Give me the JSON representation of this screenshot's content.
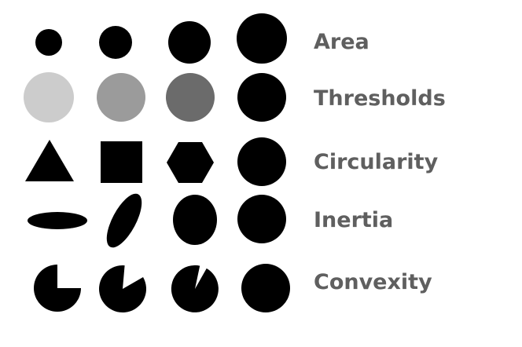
{
  "background_color": "#ffffff",
  "shape_color": "#000000",
  "label_color": "#5f5f5f",
  "rows": [
    {
      "label": "Area",
      "shapes": [
        {
          "kind": "circle",
          "icon": "small-circle-icon",
          "fill": "#000000"
        },
        {
          "kind": "circle",
          "icon": "medium-circle-icon",
          "fill": "#000000"
        },
        {
          "kind": "circle",
          "icon": "large-circle-icon",
          "fill": "#000000"
        },
        {
          "kind": "circle",
          "icon": "largest-circle-icon",
          "fill": "#000000"
        }
      ]
    },
    {
      "label": "Thresholds",
      "shapes": [
        {
          "kind": "circle",
          "icon": "light-gray-circle-icon",
          "fill": "#cccccc"
        },
        {
          "kind": "circle",
          "icon": "gray-circle-icon",
          "fill": "#9b9b9b"
        },
        {
          "kind": "circle",
          "icon": "dark-gray-circle-icon",
          "fill": "#6b6b6b"
        },
        {
          "kind": "circle",
          "icon": "black-circle-icon",
          "fill": "#000000"
        }
      ]
    },
    {
      "label": "Circularity",
      "shapes": [
        {
          "kind": "triangle",
          "icon": "triangle-icon",
          "fill": "#000000"
        },
        {
          "kind": "square",
          "icon": "square-icon",
          "fill": "#000000"
        },
        {
          "kind": "hexagon",
          "icon": "hexagon-icon",
          "fill": "#000000"
        },
        {
          "kind": "circle",
          "icon": "circle-icon",
          "fill": "#000000"
        }
      ]
    },
    {
      "label": "Inertia",
      "shapes": [
        {
          "kind": "ellipse",
          "icon": "flat-ellipse-icon",
          "fill": "#000000"
        },
        {
          "kind": "ellipse",
          "icon": "tilted-ellipse-icon",
          "fill": "#000000"
        },
        {
          "kind": "ellipse",
          "icon": "near-round-ellipse-icon",
          "fill": "#000000"
        },
        {
          "kind": "circle",
          "icon": "round-circle-icon",
          "fill": "#000000"
        }
      ]
    },
    {
      "label": "Convexity",
      "shapes": [
        {
          "kind": "pacman",
          "icon": "quarter-cut-circle-icon",
          "fill": "#000000"
        },
        {
          "kind": "pacman",
          "icon": "wedge-cut-circle-icon",
          "fill": "#000000"
        },
        {
          "kind": "pacman",
          "icon": "notch-cut-circle-icon",
          "fill": "#000000"
        },
        {
          "kind": "circle",
          "icon": "full-circle-icon",
          "fill": "#000000"
        }
      ]
    }
  ]
}
